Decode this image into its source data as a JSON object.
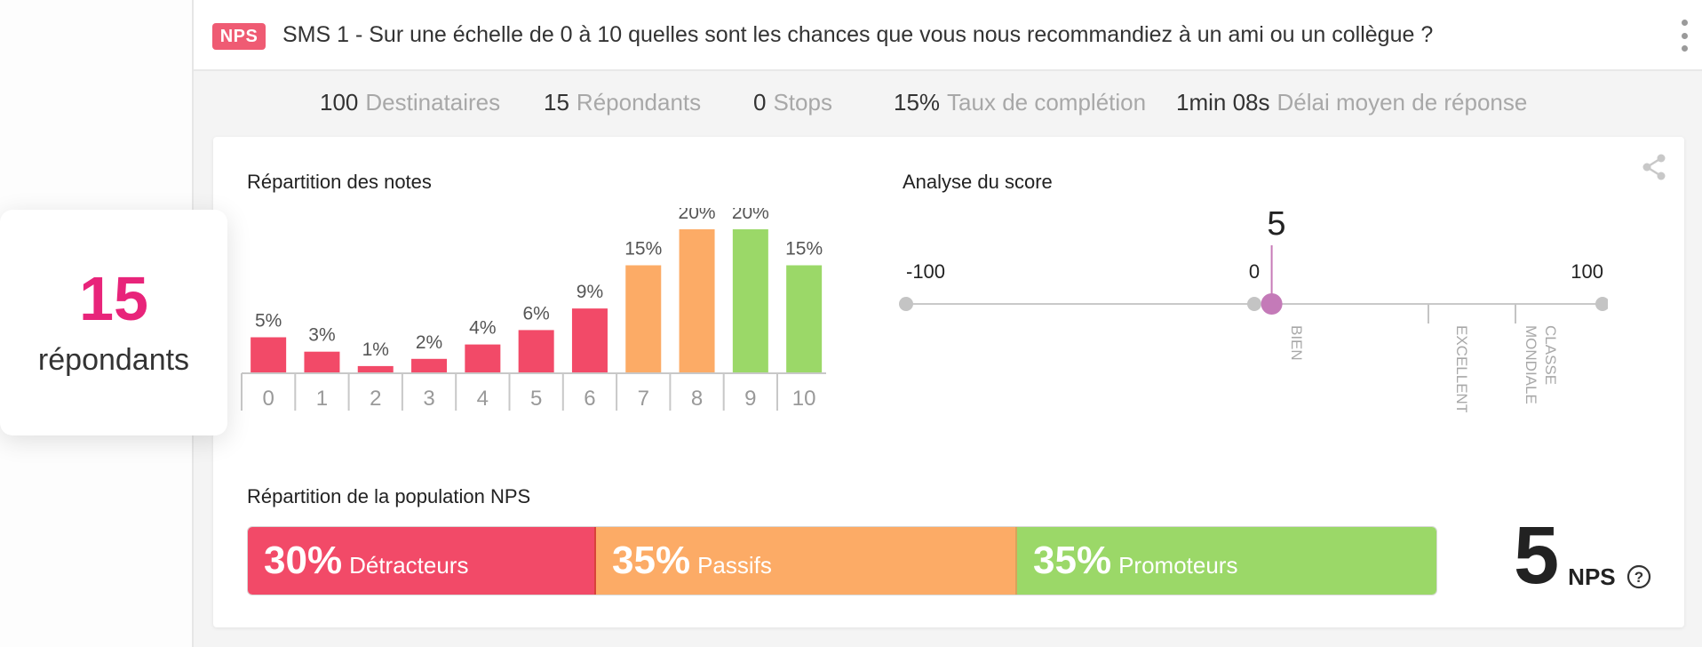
{
  "header": {
    "badge": "NPS",
    "question": "SMS 1  - Sur une échelle de 0 à 10 quelles sont les chances que vous nous recommandiez à un ami ou un collègue ?"
  },
  "stats": [
    {
      "num": "100",
      "label": "Destinataires"
    },
    {
      "num": "15",
      "label": "Répondants"
    },
    {
      "num": "0",
      "label": "Stops"
    },
    {
      "num": "15%",
      "label": "Taux de complétion"
    },
    {
      "num": "1min 08s",
      "label": "Délai moyen de réponse"
    }
  ],
  "respondents": {
    "count": "15",
    "label": "répondants"
  },
  "distribution": {
    "title": "Répartition des notes"
  },
  "analysis": {
    "title": "Analyse du score",
    "min_label": "-100",
    "zero_label": "0",
    "max_label": "100",
    "score_label": "5",
    "score": 5,
    "zones": [
      "BIEN",
      "EXCELLENT",
      "CLASSE MONDIALE"
    ]
  },
  "population": {
    "title": "Répartition de la population NPS",
    "segments": [
      {
        "pct": "30%",
        "name": "Détracteurs"
      },
      {
        "pct": "35%",
        "name": "Passifs"
      },
      {
        "pct": "35%",
        "name": "Promoteurs"
      }
    ]
  },
  "nps": {
    "value": "5",
    "label": "NPS"
  },
  "colors": {
    "detractor": "#f24a68",
    "passive": "#fcab66",
    "promoter": "#9bd868",
    "accent": "#e8247a"
  },
  "chart_data": {
    "type": "bar",
    "title": "Répartition des notes",
    "categories": [
      "0",
      "1",
      "2",
      "3",
      "4",
      "5",
      "6",
      "7",
      "8",
      "9",
      "10"
    ],
    "values": [
      5,
      3,
      1,
      2,
      4,
      6,
      9,
      15,
      20,
      20,
      15
    ],
    "labels": [
      "5%",
      "3%",
      "1%",
      "2%",
      "4%",
      "6%",
      "9%",
      "15%",
      "20%",
      "20%",
      "15%"
    ],
    "bar_colors": [
      "#f24a68",
      "#f24a68",
      "#f24a68",
      "#f24a68",
      "#f24a68",
      "#f24a68",
      "#f24a68",
      "#fcab66",
      "#fcab66",
      "#9bd868",
      "#9bd868"
    ],
    "ylim": [
      0,
      20
    ]
  }
}
